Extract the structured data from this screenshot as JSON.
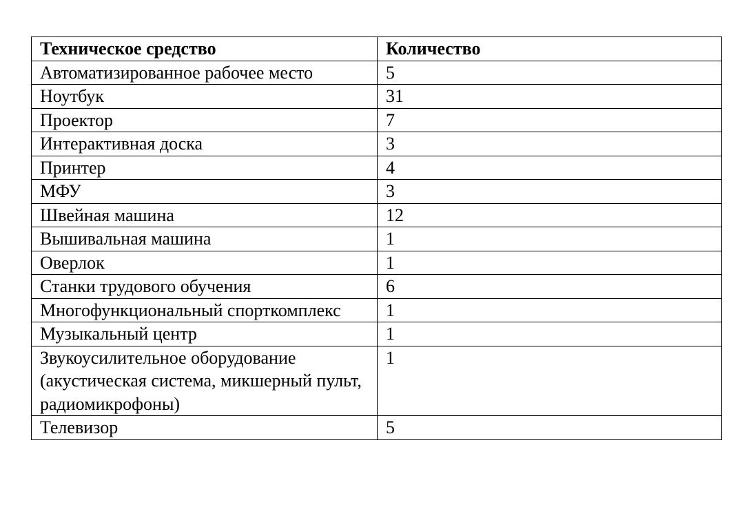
{
  "table": {
    "headers": [
      "Техническое средство",
      "Количество"
    ],
    "rows": [
      {
        "name": "Автоматизированное рабочее место",
        "qty": "5"
      },
      {
        "name": "Ноутбук",
        "qty": "31"
      },
      {
        "name": "Проектор",
        "qty": "7"
      },
      {
        "name": "Интерактивная доска",
        "qty": "3"
      },
      {
        "name": "Принтер",
        "qty": "4"
      },
      {
        "name": "МФУ",
        "qty": "3"
      },
      {
        "name": "Швейная машина",
        "qty": "12"
      },
      {
        "name": "Вышивальная машина",
        "qty": "1"
      },
      {
        "name": "Оверлок",
        "qty": "1"
      },
      {
        "name": "Станки трудового обучения",
        "qty": "6"
      },
      {
        "name": "Многофункциональный спорткомплекс",
        "qty": "1"
      },
      {
        "name": "Музыкальный центр",
        "qty": "1"
      },
      {
        "name": "Звукоусилительное оборудование (акустическая система, микшерный пульт, радиомикрофоны)",
        "qty": "1"
      },
      {
        "name": "Телевизор",
        "qty": "5"
      }
    ]
  }
}
